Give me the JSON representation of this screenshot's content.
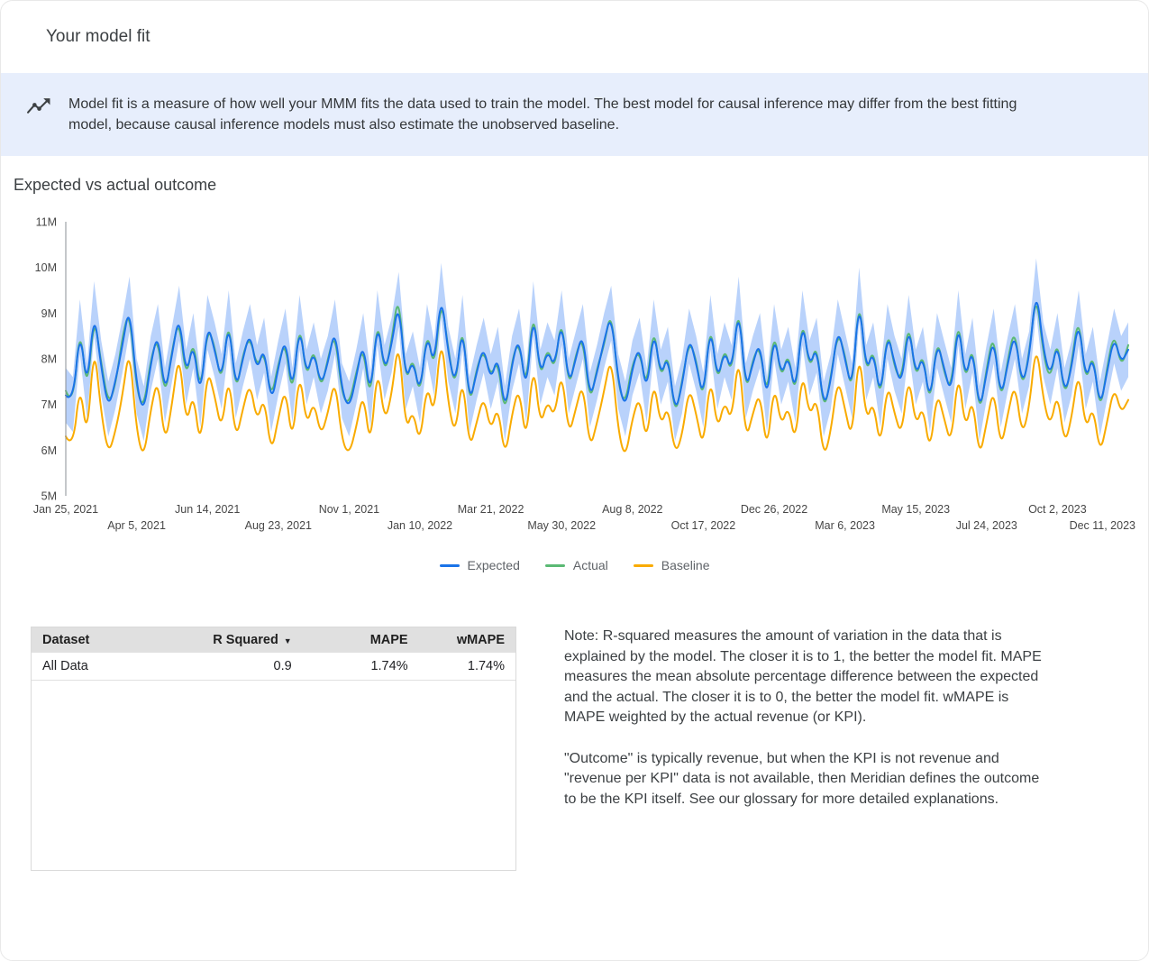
{
  "header": {
    "title": "Your model fit"
  },
  "banner": {
    "icon": "trending-line-icon",
    "text": "Model fit is a measure of how well your MMM fits the data used to train the model. The best model for causal inference may differ from the best fitting model, because causal inference models must also estimate the unobserved baseline."
  },
  "chart_section": {
    "title": "Expected vs actual outcome"
  },
  "colors": {
    "banner_bg": "#e7eefc",
    "expected": "#1a73e8",
    "actual": "#5bb974",
    "baseline": "#f9ab00",
    "band": "#a8c7fa",
    "table_header_bg": "#e0e0e0"
  },
  "chart_data": {
    "type": "line",
    "title": "Expected vs actual outcome",
    "x_unit": "week",
    "x_start_label": "Jan 25, 2021",
    "x_end_label": "Dec 11, 2023",
    "y_unit": "M",
    "ylim": [
      5,
      11
    ],
    "grid": false,
    "legend_position": "bottom",
    "yticks": [
      {
        "value": 5,
        "label": "5M"
      },
      {
        "value": 6,
        "label": "6M"
      },
      {
        "value": 7,
        "label": "7M"
      },
      {
        "value": 8,
        "label": "8M"
      },
      {
        "value": 9,
        "label": "9M"
      },
      {
        "value": 10,
        "label": "10M"
      },
      {
        "value": 11,
        "label": "11M"
      }
    ],
    "xticks": [
      {
        "index": 0,
        "label": "Jan 25, 2021"
      },
      {
        "index": 10,
        "label": "Apr 5, 2021"
      },
      {
        "index": 20,
        "label": "Jun 14, 2021"
      },
      {
        "index": 30,
        "label": "Aug 23, 2021"
      },
      {
        "index": 40,
        "label": "Nov 1, 2021"
      },
      {
        "index": 50,
        "label": "Jan 10, 2022"
      },
      {
        "index": 60,
        "label": "Mar 21, 2022"
      },
      {
        "index": 70,
        "label": "May 30, 2022"
      },
      {
        "index": 80,
        "label": "Aug 8, 2022"
      },
      {
        "index": 90,
        "label": "Oct 17, 2022"
      },
      {
        "index": 100,
        "label": "Dec 26, 2022"
      },
      {
        "index": 110,
        "label": "Mar 6, 2023"
      },
      {
        "index": 120,
        "label": "May 15, 2023"
      },
      {
        "index": 130,
        "label": "Jul 24, 2023"
      },
      {
        "index": 140,
        "label": "Oct 2, 2023"
      },
      {
        "index": 150,
        "label": "Dec 11, 2023"
      }
    ],
    "band": {
      "name": "credible-interval",
      "series": "Expected",
      "color": "#a8c7fa",
      "halfwidth": 0.6
    },
    "series": [
      {
        "name": "Expected",
        "color": "#1a73e8",
        "values": [
          7.2,
          7.0,
          8.7,
          7.3,
          9.1,
          7.8,
          6.9,
          7.5,
          8.3,
          9.2,
          7.4,
          6.8,
          7.9,
          8.6,
          7.2,
          8.1,
          9.0,
          7.6,
          8.4,
          7.1,
          8.8,
          8.2,
          7.5,
          8.9,
          7.3,
          8.0,
          8.6,
          7.7,
          8.3,
          7.0,
          7.8,
          8.5,
          7.2,
          8.8,
          7.6,
          8.2,
          7.4,
          7.9,
          8.7,
          7.3,
          6.9,
          7.6,
          8.4,
          7.1,
          8.9,
          7.7,
          8.3,
          9.3,
          7.5,
          8.0,
          7.2,
          8.6,
          7.8,
          9.5,
          8.1,
          7.4,
          8.8,
          7.0,
          7.7,
          8.3,
          7.5,
          8.1,
          6.8,
          7.9,
          8.5,
          7.2,
          9.1,
          7.6,
          8.2,
          7.8,
          8.9,
          7.4,
          8.0,
          8.6,
          7.1,
          7.7,
          8.4,
          9.0,
          7.5,
          6.9,
          7.8,
          8.3,
          7.2,
          8.7,
          7.6,
          8.1,
          6.8,
          7.4,
          8.5,
          7.9,
          7.1,
          8.8,
          7.5,
          8.2,
          7.7,
          9.2,
          7.3,
          7.9,
          8.4,
          7.0,
          8.6,
          7.6,
          8.1,
          7.2,
          8.9,
          7.8,
          8.3,
          6.9,
          7.5,
          8.7,
          8.0,
          7.3,
          9.4,
          7.7,
          8.2,
          7.1,
          8.6,
          7.9,
          7.4,
          8.8,
          7.6,
          8.1,
          7.0,
          8.4,
          7.8,
          7.2,
          8.9,
          7.5,
          8.3,
          6.8,
          7.7,
          8.5,
          7.1,
          7.9,
          8.6,
          7.4,
          8.0,
          9.6,
          8.2,
          7.6,
          8.4,
          7.2,
          7.8,
          8.9,
          7.5,
          8.1,
          6.9,
          7.7,
          8.5,
          7.9,
          8.2
        ]
      },
      {
        "name": "Actual",
        "color": "#5bb974",
        "values": [
          7.3,
          6.9,
          8.8,
          7.2,
          9.0,
          7.9,
          7.0,
          7.4,
          8.5,
          9.1,
          7.3,
          6.9,
          8.0,
          8.5,
          7.1,
          8.2,
          8.9,
          7.5,
          8.5,
          7.2,
          8.7,
          8.3,
          7.4,
          9.0,
          7.2,
          8.1,
          8.5,
          7.8,
          8.2,
          7.1,
          7.9,
          8.4,
          7.1,
          8.9,
          7.5,
          8.3,
          7.3,
          8.0,
          8.6,
          7.2,
          7.0,
          7.7,
          8.3,
          7.0,
          9.0,
          7.6,
          8.4,
          9.5,
          7.4,
          8.1,
          7.1,
          8.7,
          7.7,
          9.4,
          8.2,
          7.3,
          8.9,
          6.9,
          7.8,
          8.2,
          7.6,
          8.0,
          6.7,
          8.0,
          8.4,
          7.3,
          9.2,
          7.5,
          8.3,
          7.7,
          9.0,
          7.3,
          8.1,
          8.5,
          7.0,
          7.8,
          8.3,
          9.1,
          7.4,
          7.0,
          7.9,
          8.2,
          7.3,
          8.8,
          7.5,
          8.2,
          6.7,
          7.5,
          8.4,
          8.0,
          7.0,
          8.9,
          7.4,
          8.3,
          7.6,
          9.3,
          7.2,
          8.0,
          8.3,
          7.1,
          8.7,
          7.5,
          8.2,
          7.1,
          9.0,
          7.7,
          8.4,
          6.8,
          7.6,
          8.6,
          8.1,
          7.2,
          9.5,
          7.6,
          8.3,
          7.0,
          8.7,
          7.8,
          7.5,
          8.9,
          7.5,
          8.2,
          6.9,
          8.5,
          7.7,
          7.3,
          9.0,
          7.4,
          8.4,
          6.7,
          7.8,
          8.6,
          7.0,
          8.0,
          8.7,
          7.3,
          8.1,
          9.5,
          8.1,
          7.5,
          8.5,
          7.1,
          7.9,
          9.0,
          7.4,
          8.2,
          6.8,
          7.8,
          8.6,
          7.8,
          8.3
        ]
      },
      {
        "name": "Baseline",
        "color": "#f9ab00",
        "values": [
          6.3,
          6.0,
          7.5,
          6.2,
          8.4,
          6.8,
          5.9,
          6.4,
          7.2,
          8.3,
          6.4,
          5.8,
          6.9,
          7.6,
          6.1,
          7.0,
          8.2,
          6.5,
          7.3,
          6.0,
          7.8,
          7.2,
          6.4,
          7.7,
          6.2,
          6.9,
          7.5,
          6.6,
          7.2,
          5.9,
          6.7,
          7.4,
          6.1,
          7.8,
          6.5,
          7.1,
          6.3,
          6.8,
          7.6,
          6.2,
          5.9,
          6.5,
          7.3,
          6.0,
          7.9,
          6.6,
          7.2,
          8.5,
          6.4,
          6.9,
          6.1,
          7.5,
          6.7,
          8.6,
          7.0,
          6.3,
          7.7,
          6.0,
          6.6,
          7.2,
          6.4,
          7.0,
          5.8,
          6.8,
          7.4,
          6.1,
          8.0,
          6.5,
          7.1,
          6.7,
          7.8,
          6.3,
          6.9,
          7.5,
          6.0,
          6.6,
          7.3,
          8.1,
          6.4,
          5.8,
          6.7,
          7.2,
          6.1,
          7.6,
          6.5,
          7.0,
          5.9,
          6.3,
          7.4,
          6.8,
          6.0,
          7.7,
          6.4,
          7.1,
          6.6,
          8.2,
          6.2,
          6.8,
          7.3,
          5.9,
          7.5,
          6.5,
          7.0,
          6.1,
          7.8,
          6.7,
          7.2,
          5.8,
          6.4,
          7.6,
          6.9,
          6.2,
          8.3,
          6.6,
          7.1,
          6.0,
          7.5,
          6.8,
          6.3,
          7.7,
          6.5,
          7.0,
          5.9,
          7.3,
          6.7,
          6.1,
          7.8,
          6.4,
          7.2,
          5.8,
          6.6,
          7.4,
          6.0,
          6.8,
          7.5,
          6.3,
          6.9,
          8.4,
          7.1,
          6.5,
          7.3,
          6.1,
          6.7,
          7.8,
          6.4,
          7.0,
          5.9,
          6.6,
          7.4,
          6.8,
          7.1
        ]
      }
    ]
  },
  "table": {
    "columns": [
      {
        "label": "Dataset",
        "align": "left",
        "sortable": false
      },
      {
        "label": "R Squared",
        "align": "right",
        "sortable": true
      },
      {
        "label": "MAPE",
        "align": "right",
        "sortable": false
      },
      {
        "label": "wMAPE",
        "align": "right",
        "sortable": false
      }
    ],
    "rows": [
      [
        "All Data",
        "0.9",
        "1.74%",
        "1.74%"
      ]
    ]
  },
  "notes": {
    "paragraph1": "Note: R-squared measures the amount of variation in the data that is explained by the model. The closer it is to 1, the better the model fit. MAPE measures the mean absolute percentage difference between the expected and the actual. The closer it is to 0, the better the model fit. wMAPE is MAPE weighted by the actual revenue (or KPI).",
    "paragraph2": "\"Outcome\" is typically revenue, but when the KPI is not revenue and \"revenue per KPI\" data is not available, then Meridian defines the outcome to be the KPI itself. See our glossary for more detailed explanations."
  }
}
